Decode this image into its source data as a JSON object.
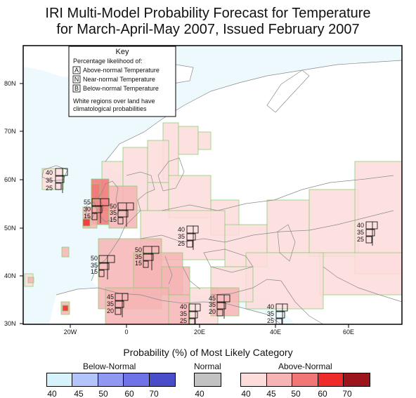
{
  "title": {
    "line1": "IRI Multi-Model Probability Forecast for Temperature",
    "line2": "for March-April-May 2007, Issued February 2007"
  },
  "key": {
    "title": "Key",
    "subtitle": "Percentage likelihood of:",
    "items": [
      {
        "letter": "A",
        "label": "Above-normal Temperature"
      },
      {
        "letter": "N",
        "label": "Near-normal Temperature"
      },
      {
        "letter": "B",
        "label": "Below-normal Temperature"
      }
    ],
    "note_line1": "White regions over land have",
    "note_line2": "climatological probabilities"
  },
  "lat_labels": [
    "80N",
    "70N",
    "60N",
    "50N",
    "40N",
    "30N"
  ],
  "lon_labels": [
    "20W",
    "0",
    "20E",
    "40E",
    "60E"
  ],
  "forecasts": [
    {
      "a": "40",
      "n": "35",
      "b": "25"
    },
    {
      "a": "55",
      "n": "30",
      "b": "15"
    },
    {
      "a": "50",
      "n": "35",
      "b": "15"
    },
    {
      "a": "40",
      "n": "35",
      "b": "25"
    },
    {
      "a": "50",
      "n": "35",
      "b": "15"
    },
    {
      "a": "50",
      "n": "35",
      "b": "15"
    },
    {
      "a": "45",
      "n": "35",
      "b": "20"
    },
    {
      "a": "40",
      "n": "35",
      "b": "25"
    },
    {
      "a": "45",
      "n": "35",
      "b": "20"
    },
    {
      "a": "40",
      "n": "35",
      "b": "25"
    },
    {
      "a": "40",
      "n": "35",
      "b": "25"
    }
  ],
  "legend": {
    "title": "Probability (%) of Most Likely Category",
    "below_label": "Below-Normal",
    "normal_label": "Normal",
    "above_label": "Above-Normal",
    "below_colors": [
      "#d6f3fb",
      "#b3c4fb",
      "#8f99f3",
      "#6f73e8",
      "#4a4dc9"
    ],
    "normal_color": "#c2c2c2",
    "above_colors": [
      "#fddcdc",
      "#f6b4b4",
      "#f17777",
      "#ee2a2a",
      "#9c141c"
    ],
    "below_ticks": [
      "40",
      "45",
      "50",
      "60",
      "70"
    ],
    "normal_ticks": [
      "40"
    ],
    "above_ticks": [
      "40",
      "45",
      "50",
      "60",
      "70"
    ]
  },
  "colors": {
    "ocean": "#eef9fe",
    "land": "#ffffff",
    "a40": "#fddcdc",
    "a45": "#f6b4b4",
    "a50": "#f17777",
    "a60": "#ee2a2a",
    "grid_edge": "#8ccf74"
  }
}
